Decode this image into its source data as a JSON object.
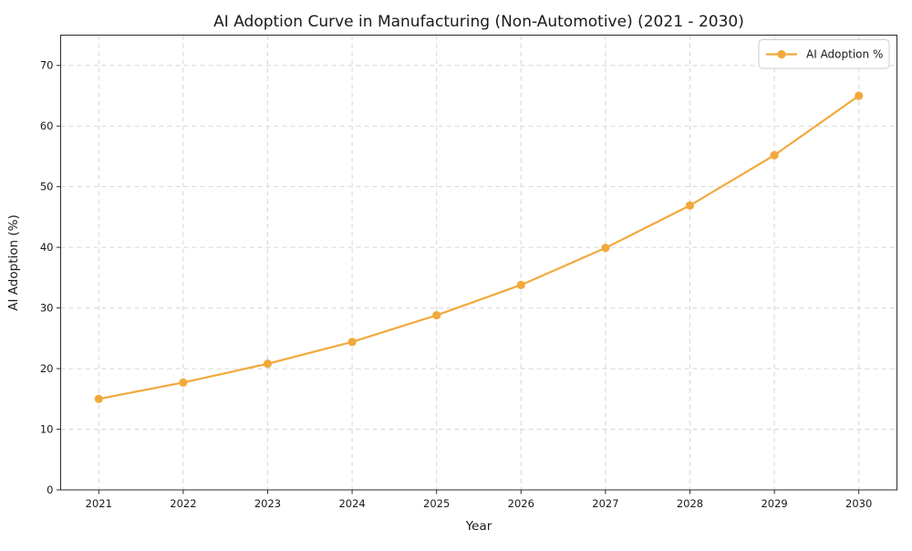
{
  "chart_data": {
    "type": "line",
    "title": "AI Adoption Curve in Manufacturing (Non-Automotive) (2021 - 2030)",
    "xlabel": "Year",
    "ylabel": "AI Adoption (%)",
    "categories": [
      "2021",
      "2022",
      "2023",
      "2024",
      "2025",
      "2026",
      "2027",
      "2028",
      "2029",
      "2030"
    ],
    "series": [
      {
        "name": "AI Adoption %",
        "values": [
          15.0,
          17.7,
          20.8,
          24.4,
          28.8,
          33.8,
          39.9,
          46.9,
          55.2,
          65.0
        ],
        "color": "#F2A93C",
        "marker": "circle"
      }
    ],
    "ylim": [
      0,
      75
    ],
    "yticks": [
      0,
      10,
      20,
      30,
      40,
      50,
      60,
      70
    ],
    "grid": true,
    "grid_linestyle": "dashed",
    "legend": {
      "position": "upper right",
      "entries": [
        "AI Adoption %"
      ]
    }
  },
  "colors": {
    "accent": "#F2A93C",
    "grid": "#D6D6D6",
    "text": "#1A1A1A",
    "spine": "#2B2B2B",
    "legend_border": "#CCCCCC",
    "background": "#FFFFFF"
  }
}
